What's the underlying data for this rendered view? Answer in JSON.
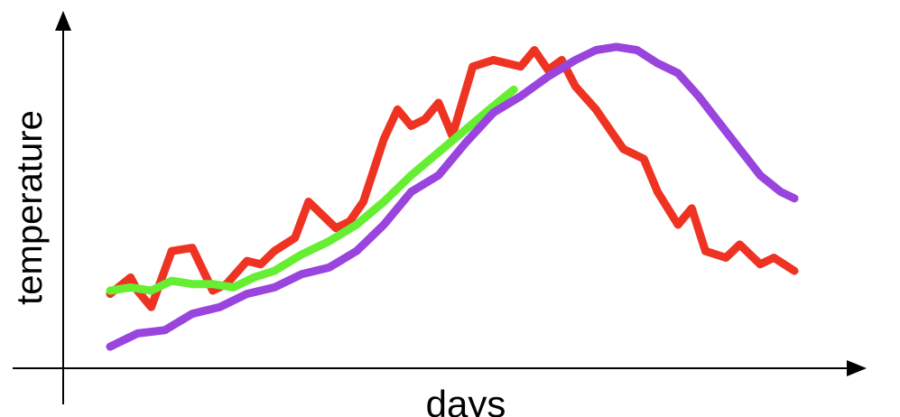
{
  "chart_data": {
    "type": "scatter",
    "xlabel": "days",
    "ylabel": "temperature",
    "xlim": [
      0,
      100
    ],
    "ylim": [
      0,
      100
    ],
    "colors": {
      "points": "#1144ee",
      "series_red": "#ee3322",
      "series_green": "#66ee33",
      "series_purple": "#9944dd",
      "axes": "#000000"
    },
    "points": [],
    "series": [
      {
        "color_key": "series_red",
        "x": [
          0,
          3,
          4,
          6,
          9,
          12,
          15,
          17,
          20,
          22,
          24,
          27,
          29,
          31,
          33,
          35,
          37,
          40,
          42,
          44,
          46,
          48,
          50,
          53,
          56,
          58,
          60,
          62,
          64,
          66,
          68,
          71,
          73,
          75,
          78,
          80,
          83,
          85,
          87,
          90,
          92,
          95,
          97,
          100
        ],
        "y": [
          19,
          24,
          20,
          15,
          32,
          33,
          20,
          22,
          29,
          28,
          32,
          36,
          47,
          43,
          39,
          41,
          47,
          66,
          75,
          70,
          72,
          77,
          67,
          88,
          90,
          89,
          88,
          93,
          87,
          90,
          82,
          75,
          69,
          63,
          60,
          50,
          40,
          45,
          32,
          30,
          34,
          28,
          30,
          26
        ]
      },
      {
        "color_key": "series_green",
        "x": [
          0,
          3,
          6,
          9,
          12,
          15,
          18,
          21,
          24,
          28,
          32,
          36,
          40,
          44,
          48,
          52,
          56,
          59
        ],
        "y": [
          20,
          21,
          20,
          23,
          22,
          22,
          21,
          24,
          26,
          31,
          35,
          40,
          47,
          55,
          62,
          69,
          76,
          81
        ]
      },
      {
        "color_key": "series_purple",
        "x": [
          0,
          4,
          8,
          12,
          16,
          20,
          24,
          28,
          32,
          36,
          40,
          44,
          48,
          52,
          56,
          60,
          64,
          68,
          71,
          74,
          77,
          80,
          83,
          86,
          89,
          92,
          95,
          98,
          100
        ],
        "y": [
          3,
          7,
          8,
          13,
          15,
          19,
          21,
          25,
          27,
          32,
          40,
          50,
          55,
          65,
          74,
          79,
          85,
          90,
          93,
          94,
          93,
          89,
          86,
          79,
          71,
          63,
          55,
          50,
          48
        ]
      }
    ]
  }
}
